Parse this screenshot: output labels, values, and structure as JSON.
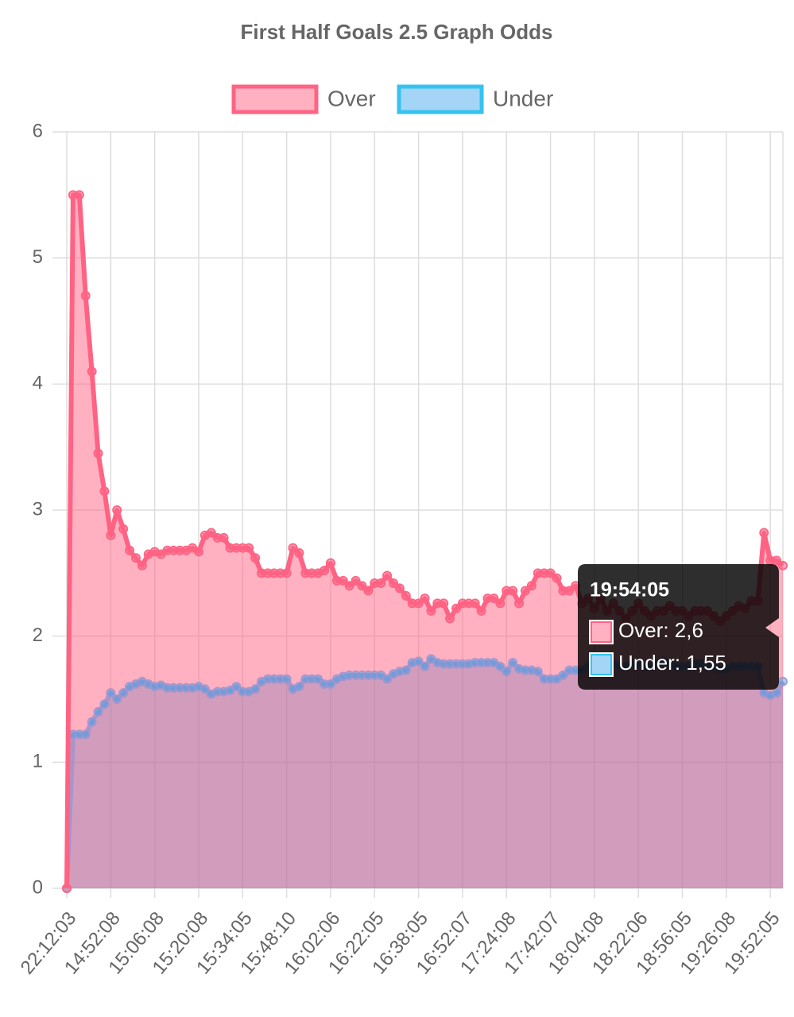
{
  "chart_data": {
    "type": "line",
    "title": "First Half Goals 2.5 Graph Odds",
    "categories": [
      "22:12:03",
      null,
      null,
      null,
      null,
      null,
      null,
      "14:52:08",
      null,
      null,
      null,
      null,
      null,
      null,
      "15:06:08",
      null,
      null,
      null,
      null,
      null,
      null,
      "15:20:08",
      null,
      null,
      null,
      null,
      null,
      null,
      "15:34:05",
      null,
      null,
      null,
      null,
      null,
      null,
      "15:48:10",
      null,
      null,
      null,
      null,
      null,
      null,
      "16:02:06",
      null,
      null,
      null,
      null,
      null,
      null,
      "16:22:05",
      null,
      null,
      null,
      null,
      null,
      null,
      "16:38:05",
      null,
      null,
      null,
      null,
      null,
      null,
      "16:52:07",
      null,
      null,
      null,
      null,
      null,
      null,
      "17:24:08",
      null,
      null,
      null,
      null,
      null,
      null,
      "17:42:07",
      null,
      null,
      null,
      null,
      null,
      null,
      "18:04:08",
      null,
      null,
      null,
      null,
      null,
      null,
      "18:22:06",
      null,
      null,
      null,
      null,
      null,
      null,
      "18:56:05",
      null,
      null,
      null,
      null,
      null,
      null,
      "19:26:08",
      null,
      null,
      null,
      null,
      null,
      null,
      "19:52:05",
      "19:54:05",
      null
    ],
    "x_tick_step": 7,
    "series": [
      {
        "name": "Over",
        "color": "#ff6384",
        "fill": "rgba(255,99,132,0.5)",
        "values": [
          0,
          5.5,
          5.5,
          4.7,
          4.1,
          3.45,
          3.15,
          2.8,
          3.0,
          2.85,
          2.68,
          2.62,
          2.56,
          2.65,
          2.67,
          2.65,
          2.68,
          2.68,
          2.68,
          2.68,
          2.7,
          2.67,
          2.8,
          2.82,
          2.78,
          2.78,
          2.7,
          2.7,
          2.7,
          2.7,
          2.62,
          2.5,
          2.5,
          2.5,
          2.5,
          2.5,
          2.7,
          2.66,
          2.5,
          2.5,
          2.5,
          2.52,
          2.58,
          2.44,
          2.44,
          2.4,
          2.44,
          2.4,
          2.36,
          2.42,
          2.42,
          2.48,
          2.42,
          2.38,
          2.32,
          2.26,
          2.26,
          2.3,
          2.2,
          2.26,
          2.26,
          2.14,
          2.22,
          2.26,
          2.26,
          2.26,
          2.2,
          2.3,
          2.3,
          2.26,
          2.36,
          2.36,
          2.26,
          2.36,
          2.4,
          2.5,
          2.5,
          2.5,
          2.46,
          2.36,
          2.36,
          2.4,
          2.26,
          2.3,
          2.22,
          2.3,
          2.2,
          2.26,
          2.2,
          2.14,
          2.2,
          2.26,
          2.2,
          2.16,
          2.2,
          2.2,
          2.24,
          2.2,
          2.2,
          2.16,
          2.2,
          2.2,
          2.2,
          2.16,
          2.12,
          2.16,
          2.2,
          2.24,
          2.22,
          2.28,
          2.28,
          2.82,
          2.6,
          2.6,
          2.56
        ]
      },
      {
        "name": "Under",
        "color": "#36c2f0",
        "fill": "rgba(54,162,235,0.45)",
        "values": [
          0,
          1.22,
          1.22,
          1.22,
          1.32,
          1.4,
          1.46,
          1.55,
          1.5,
          1.55,
          1.6,
          1.62,
          1.64,
          1.62,
          1.6,
          1.61,
          1.59,
          1.59,
          1.59,
          1.59,
          1.59,
          1.6,
          1.58,
          1.54,
          1.56,
          1.56,
          1.57,
          1.6,
          1.56,
          1.56,
          1.58,
          1.64,
          1.66,
          1.66,
          1.66,
          1.66,
          1.58,
          1.6,
          1.66,
          1.66,
          1.66,
          1.62,
          1.62,
          1.66,
          1.68,
          1.69,
          1.69,
          1.69,
          1.69,
          1.69,
          1.69,
          1.66,
          1.7,
          1.72,
          1.73,
          1.79,
          1.8,
          1.76,
          1.82,
          1.79,
          1.78,
          1.78,
          1.78,
          1.78,
          1.78,
          1.79,
          1.79,
          1.79,
          1.79,
          1.76,
          1.72,
          1.79,
          1.74,
          1.73,
          1.73,
          1.72,
          1.66,
          1.66,
          1.66,
          1.69,
          1.73,
          1.73,
          1.73,
          1.76,
          1.78,
          1.76,
          1.78,
          1.78,
          1.76,
          1.76,
          1.78,
          1.78,
          1.76,
          1.76,
          1.78,
          1.8,
          1.78,
          1.76,
          1.76,
          1.76,
          1.78,
          1.78,
          1.76,
          1.76,
          1.74,
          1.74,
          1.76,
          1.76,
          1.76,
          1.76,
          1.76,
          1.55,
          1.53,
          1.55,
          1.64
        ]
      }
    ],
    "ylim": [
      0,
      6
    ],
    "yticks": [
      0,
      1,
      2,
      3,
      4,
      5,
      6
    ],
    "grid": true,
    "tooltip": {
      "index": 113,
      "items": [
        "Over: 2,6",
        "Under: 1,55"
      ]
    }
  }
}
